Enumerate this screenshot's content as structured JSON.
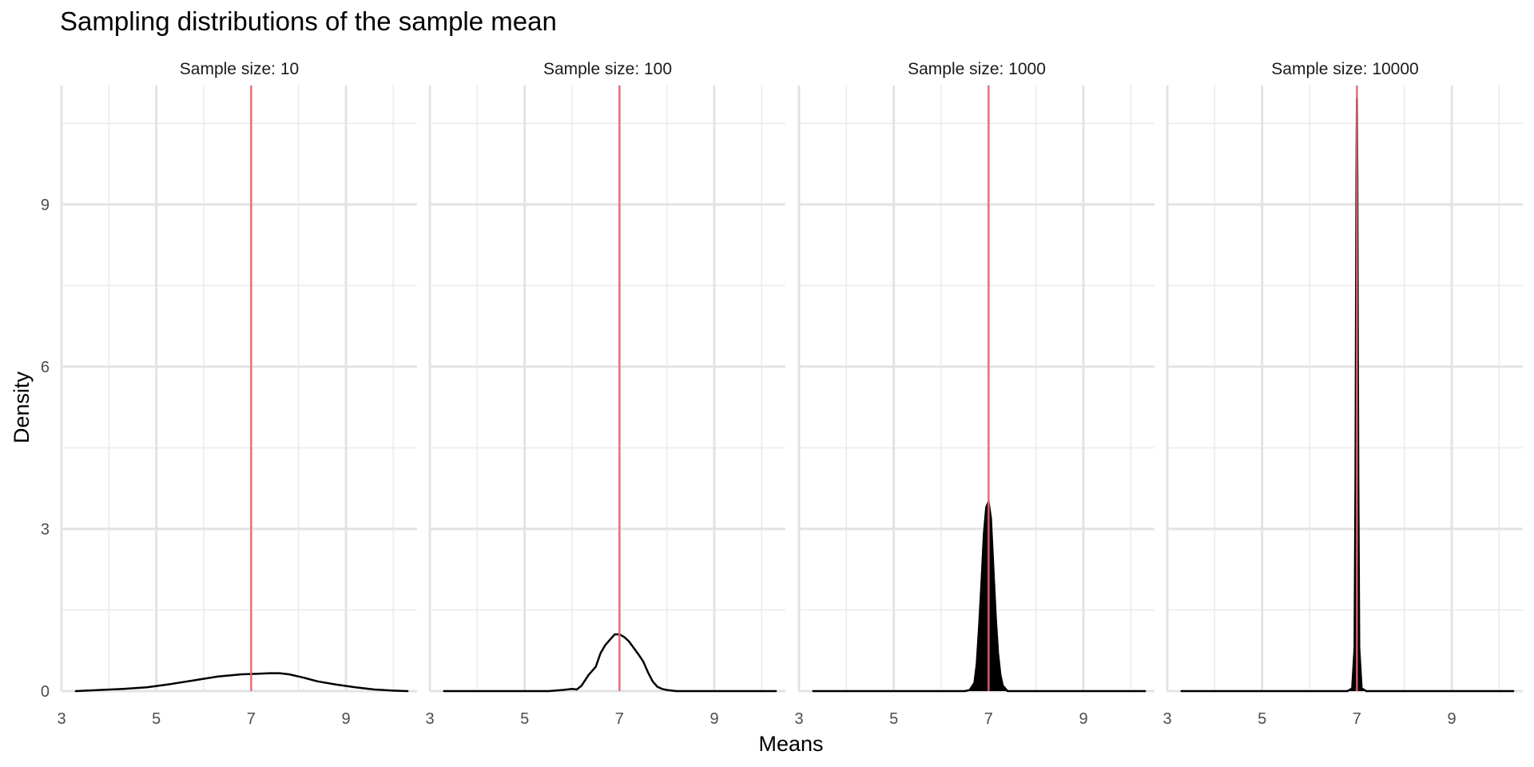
{
  "chart_data": {
    "type": "line",
    "title": "Sampling distributions of the sample mean",
    "xlabel": "Means",
    "ylabel": "Density",
    "xlim": [
      3,
      10.5
    ],
    "ylim": [
      0,
      11.2
    ],
    "x_ticks": [
      3,
      5,
      7,
      9
    ],
    "y_ticks": [
      0,
      3,
      6,
      9
    ],
    "grid": true,
    "reference_line": {
      "x": 7,
      "color": "#e8676b"
    },
    "line_color": "#000000",
    "panels": [
      {
        "label": "Sample size: 10",
        "x": [
          3.3,
          3.8,
          4.3,
          4.8,
          5.3,
          5.8,
          6.3,
          6.8,
          7.1,
          7.4,
          7.6,
          7.8,
          8.1,
          8.4,
          8.8,
          9.2,
          9.6,
          10.0,
          10.3
        ],
        "y": [
          0.0,
          0.02,
          0.04,
          0.07,
          0.13,
          0.2,
          0.27,
          0.31,
          0.32,
          0.33,
          0.33,
          0.31,
          0.25,
          0.18,
          0.12,
          0.07,
          0.03,
          0.01,
          0.0
        ]
      },
      {
        "label": "Sample size: 100",
        "x": [
          3.3,
          4.5,
          5.5,
          5.8,
          6.0,
          6.1,
          6.2,
          6.35,
          6.5,
          6.6,
          6.7,
          6.8,
          6.9,
          7.0,
          7.1,
          7.2,
          7.3,
          7.4,
          7.5,
          7.6,
          7.7,
          7.8,
          7.9,
          8.0,
          8.2,
          8.5,
          9.5,
          10.3
        ],
        "y": [
          0.0,
          0.0,
          0.0,
          0.02,
          0.04,
          0.03,
          0.1,
          0.3,
          0.45,
          0.7,
          0.85,
          0.95,
          1.05,
          1.05,
          1.0,
          0.92,
          0.8,
          0.68,
          0.55,
          0.35,
          0.18,
          0.08,
          0.04,
          0.02,
          0.0,
          0.0,
          0.0,
          0.0
        ]
      },
      {
        "label": "Sample size: 1000",
        "x": [
          3.3,
          6.0,
          6.5,
          6.6,
          6.7,
          6.75,
          6.8,
          6.85,
          6.9,
          6.95,
          7.0,
          7.05,
          7.1,
          7.15,
          7.2,
          7.25,
          7.3,
          7.4,
          8.0,
          10.3
        ],
        "y": [
          0.0,
          0.0,
          0.0,
          0.02,
          0.15,
          0.5,
          1.2,
          2.0,
          2.9,
          3.4,
          3.5,
          3.2,
          2.3,
          1.4,
          0.7,
          0.3,
          0.1,
          0.0,
          0.0,
          0.0
        ],
        "fill": "#000000"
      },
      {
        "label": "Sample size: 10000",
        "x": [
          3.3,
          6.8,
          6.9,
          6.95,
          6.97,
          6.99,
          7.0,
          7.01,
          7.03,
          7.05,
          7.1,
          7.2,
          10.3
        ],
        "y": [
          0.0,
          0.0,
          0.05,
          0.8,
          4.0,
          9.5,
          10.95,
          9.5,
          4.0,
          0.8,
          0.05,
          0.0,
          0.0
        ],
        "fill": "#000000"
      }
    ]
  }
}
